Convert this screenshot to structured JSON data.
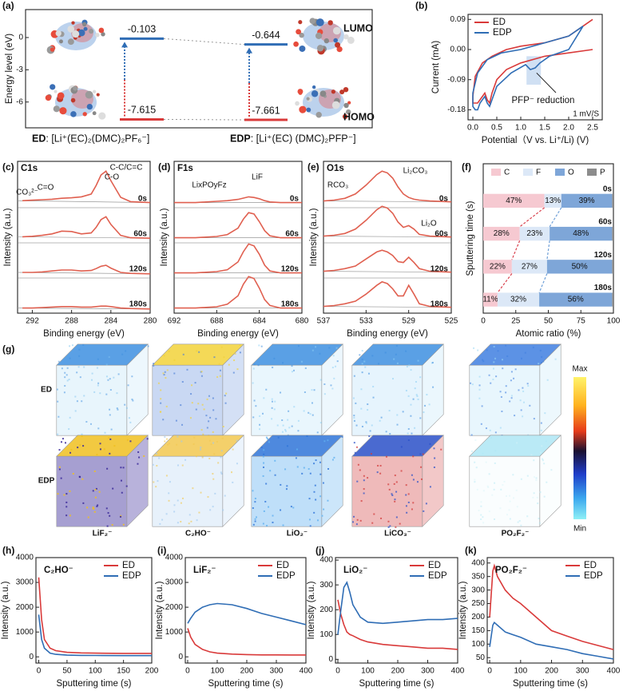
{
  "chart_data": [
    {
      "type": "energy_level",
      "panel_label": "(a)",
      "ylabel": "Energy level (eV)",
      "ylim": [
        -8.4,
        2.6
      ],
      "yticks": [
        0,
        -3,
        -6
      ],
      "level_labels": [
        "LUMO",
        "HOMO"
      ],
      "level_colors": [
        "#2f6db5",
        "#d93a3a"
      ],
      "series": [
        {
          "name": "ED",
          "color": "#d93a3a",
          "values": [
            -0.103,
            -7.615
          ],
          "formula": ": [Li⁺(EC)₂(DMC)₂PF₆⁻]"
        },
        {
          "name": "EDP",
          "color": "#2f6db5",
          "values": [
            -0.644,
            -7.661
          ],
          "formula": ": [Li⁺(EC) (DMC)₂PFP⁻]"
        }
      ]
    },
    {
      "type": "line",
      "panel_label": "(b)",
      "xlabel": "Potential（V vs. Li⁺/Li) (V)",
      "ylabel": "Current (mA)",
      "xlim": [
        -0.1,
        2.7
      ],
      "xticks": [
        {
          "value": 0,
          "label": "0.0"
        },
        {
          "value": 0.5,
          "label": "0.5"
        },
        {
          "value": 1,
          "label": "1.0"
        },
        {
          "value": 1.5,
          "label": "1.5"
        },
        {
          "value": 2,
          "label": "2.0"
        },
        {
          "value": 2.5,
          "label": "2.5"
        }
      ],
      "ylim": [
        -0.21,
        0.105
      ],
      "yticks": [
        0.09,
        {
          "value": 0,
          "label": "0.00"
        },
        -0.09,
        -0.18
      ],
      "legend": "upper left",
      "annotations": [
        "PFP⁻ reduction",
        "1 mV/S"
      ],
      "series": [
        {
          "name": "ED",
          "color": "#d93a3a",
          "x": [
            2.5,
            2.0,
            1.5,
            1.0,
            0.7,
            0.5,
            0.4,
            0.35,
            0.3,
            0.25,
            0.15,
            0.1,
            0.05,
            0,
            0,
            0.05,
            0.2,
            0.4,
            0.7,
            1.0,
            1.5,
            2.0,
            2.3,
            2.5
          ],
          "values": [
            0.0,
            -0.01,
            -0.02,
            -0.04,
            -0.06,
            -0.09,
            -0.13,
            -0.16,
            -0.15,
            -0.13,
            -0.15,
            -0.16,
            -0.16,
            -0.16,
            -0.14,
            -0.08,
            -0.04,
            -0.02,
            0.0,
            0.01,
            0.02,
            0.04,
            0.07,
            0.09
          ]
        },
        {
          "name": "EDP",
          "color": "#2f6db5",
          "x": [
            2.3,
            2.0,
            1.6,
            1.4,
            1.3,
            1.2,
            1.1,
            0.8,
            0.5,
            0.4,
            0.35,
            0.3,
            0.25,
            0.15,
            0.1,
            0.05,
            0,
            0,
            0.1,
            0.3,
            0.6,
            1.0,
            1.5,
            2.0,
            2.3
          ],
          "values": [
            0.07,
            0.0,
            -0.02,
            -0.04,
            -0.055,
            -0.06,
            -0.045,
            -0.07,
            -0.11,
            -0.15,
            -0.17,
            -0.16,
            -0.14,
            -0.16,
            -0.18,
            -0.18,
            -0.17,
            -0.13,
            -0.07,
            -0.03,
            -0.01,
            0.0,
            0.02,
            0.04,
            0.07
          ]
        }
      ]
    },
    {
      "type": "xps",
      "panel_label": "(c)",
      "title": "C1s",
      "xlabel": "Binding energy (eV)",
      "ylabel": "Intensity (a.u.)",
      "xlim": [
        293.5,
        280
      ],
      "xticks": [
        292,
        288,
        284,
        280
      ],
      "peak_labels": [
        "CO₃²⁻",
        "C=O",
        "C-O",
        "C-C/C=C"
      ],
      "peak_label_colors": [
        "#3a9a5b",
        "#55688a",
        "#e09a30",
        "#2f6db5"
      ],
      "x": [
        293,
        292,
        291,
        290,
        289,
        288,
        287,
        286,
        285.5,
        285,
        284.5,
        284,
        283,
        282,
        280
      ],
      "series": [
        {
          "name": "0s",
          "color": "#e06050",
          "values": [
            8,
            9,
            10,
            11,
            13,
            14,
            16,
            22,
            40,
            62,
            70,
            50,
            15,
            6,
            4
          ]
        },
        {
          "name": "60s",
          "color": "#e06050",
          "values": [
            6,
            7,
            9,
            12,
            18,
            17,
            12,
            14,
            26,
            42,
            48,
            32,
            9,
            4,
            3
          ]
        },
        {
          "name": "120s",
          "color": "#e06050",
          "values": [
            5,
            5,
            6,
            8,
            10,
            10,
            8,
            9,
            13,
            18,
            20,
            14,
            5,
            3,
            2
          ]
        },
        {
          "name": "180s",
          "color": "#e06050",
          "values": [
            4,
            4,
            5,
            6,
            7,
            7,
            6,
            6,
            7,
            8,
            8,
            7,
            4,
            3,
            2
          ]
        }
      ]
    },
    {
      "type": "xps",
      "panel_label": "(d)",
      "title": "F1s",
      "xlabel": "Binding energy (eV)",
      "ylabel": "Intensity (a.u.)",
      "xlim": [
        692,
        680
      ],
      "xticks": [
        692,
        688,
        684,
        680
      ],
      "peak_labels": [
        "LixPOyFz",
        "LiF"
      ],
      "peak_label_colors": [
        "#3a9a5b",
        "#2f6db5"
      ],
      "x": [
        692,
        690,
        689,
        688,
        687,
        686,
        685.5,
        685,
        684.5,
        684,
        683.5,
        683,
        682,
        681,
        680
      ],
      "series": [
        {
          "name": "0s",
          "color": "#e06050",
          "values": [
            3,
            3,
            4,
            5,
            6,
            8,
            10,
            12,
            11,
            9,
            6,
            4,
            3,
            3,
            3
          ]
        },
        {
          "name": "60s",
          "color": "#e06050",
          "values": [
            3,
            3,
            4,
            5,
            8,
            18,
            32,
            42,
            40,
            28,
            14,
            6,
            3,
            3,
            3
          ]
        },
        {
          "name": "120s",
          "color": "#e06050",
          "values": [
            3,
            3,
            4,
            5,
            8,
            20,
            36,
            48,
            45,
            32,
            15,
            6,
            3,
            3,
            3
          ]
        },
        {
          "name": "180s",
          "color": "#e06050",
          "values": [
            3,
            3,
            4,
            5,
            9,
            22,
            40,
            52,
            49,
            34,
            16,
            7,
            3,
            3,
            3
          ]
        }
      ]
    },
    {
      "type": "xps",
      "panel_label": "(e)",
      "title": "O1s",
      "xlabel": "Binding energy (eV)",
      "ylabel": "Intensity (a.u.)",
      "xlim": [
        537,
        525
      ],
      "xticks": [
        537,
        533,
        529,
        525
      ],
      "peak_labels": [
        "RCO₃",
        "Li₂CO₃",
        "Li₂O"
      ],
      "peak_label_colors": [
        "#55688a",
        "#e09a30",
        "#3a9a5b"
      ],
      "x": [
        537,
        536,
        535,
        534,
        533,
        532,
        531.5,
        531,
        530.5,
        530,
        529.5,
        529,
        528.5,
        528,
        527,
        525
      ],
      "series": [
        {
          "name": "0s",
          "color": "#e06050",
          "values": [
            4,
            5,
            7,
            12,
            22,
            34,
            38,
            36,
            30,
            20,
            12,
            8,
            6,
            5,
            4,
            3
          ]
        },
        {
          "name": "60s",
          "color": "#e06050",
          "values": [
            4,
            5,
            7,
            12,
            22,
            34,
            38,
            36,
            30,
            20,
            14,
            16,
            12,
            6,
            4,
            3
          ]
        },
        {
          "name": "120s",
          "color": "#e06050",
          "values": [
            4,
            5,
            7,
            10,
            18,
            26,
            28,
            26,
            22,
            15,
            14,
            20,
            14,
            7,
            4,
            3
          ]
        },
        {
          "name": "180s",
          "color": "#e06050",
          "values": [
            4,
            5,
            7,
            10,
            18,
            28,
            32,
            30,
            24,
            16,
            16,
            28,
            18,
            7,
            4,
            3
          ]
        }
      ]
    },
    {
      "type": "stacked_barh",
      "panel_label": "(f)",
      "xlabel": "Atomic ratio (%)",
      "ylabel": "Sputtering time (s)",
      "xlim": [
        0,
        100
      ],
      "xticks": [
        0,
        25,
        50,
        75,
        100
      ],
      "categories": [
        "0s",
        "60s",
        "120s",
        "180s"
      ],
      "legend": "top",
      "series": [
        {
          "name": "C",
          "color": "#f6c9d1",
          "label_color": "#d9434f",
          "values": [
            47,
            28,
            22,
            11
          ],
          "value_labels": [
            "47%",
            "28%",
            "22%",
            "11%"
          ]
        },
        {
          "name": "F",
          "color": "#dce8f7",
          "label_color": "#6fa0d8",
          "values": [
            13,
            23,
            27,
            32
          ],
          "value_labels": [
            "13%",
            "23%",
            "27%",
            "32%"
          ]
        },
        {
          "name": "O",
          "color": "#7ea6d8",
          "label_color": "#1d4f91",
          "values": [
            39,
            48,
            50,
            56
          ],
          "value_labels": [
            "39%",
            "48%",
            "50%",
            "56%"
          ]
        },
        {
          "name": "P",
          "color": "#8c8c8c",
          "values": [
            1,
            1,
            1,
            1
          ]
        }
      ]
    },
    {
      "type": "image_grid",
      "panel_label": "(g)",
      "rows": [
        "ED",
        "EDP"
      ],
      "row_colors": [
        "#d93a3a",
        "#2f6db5"
      ],
      "columns": [
        "LiF₂⁻",
        "C₂HO⁻",
        "LiO₂⁻",
        "LiCO₃⁻",
        "PO₂F₂⁻"
      ],
      "colorbar_labels": [
        "Max",
        "Min"
      ]
    },
    {
      "type": "line",
      "panel_label": "(h)",
      "title": "C₂HO⁻",
      "xlabel": "Sputtering time (s)",
      "ylabel": "Intensity (a.u.)",
      "xlim": [
        -5,
        200
      ],
      "xticks": [
        0,
        50,
        100,
        150,
        200
      ],
      "ylim": [
        -250,
        4000
      ],
      "yticks": [
        0,
        1000,
        2000,
        3000,
        4000
      ],
      "legend": "upper right",
      "x": [
        0,
        5,
        10,
        20,
        30,
        50,
        75,
        100,
        150,
        200
      ],
      "series": [
        {
          "name": "ED",
          "color": "#d93a3a",
          "values": [
            3200,
            1500,
            700,
            350,
            250,
            180,
            160,
            150,
            140,
            140
          ]
        },
        {
          "name": "EDP",
          "color": "#2f6db5",
          "values": [
            1700,
            700,
            350,
            150,
            100,
            70,
            60,
            55,
            50,
            50
          ]
        }
      ]
    },
    {
      "type": "line",
      "panel_label": "(i)",
      "title": "LiF₂⁻",
      "xlabel": "Sputtering time (s)",
      "ylabel": "Intensity (a.u.)",
      "xlim": [
        -8,
        400
      ],
      "xticks": [
        0,
        100,
        200,
        300,
        400
      ],
      "ylim": [
        -250,
        4000
      ],
      "yticks": [
        0,
        1000,
        2000,
        3000,
        4000
      ],
      "legend": "upper right",
      "x": [
        0,
        10,
        25,
        50,
        75,
        100,
        150,
        200,
        250,
        300,
        350,
        400
      ],
      "series": [
        {
          "name": "ED",
          "color": "#d93a3a",
          "values": [
            1150,
            800,
            500,
            300,
            200,
            150,
            110,
            90,
            80,
            80,
            75,
            75
          ]
        },
        {
          "name": "EDP",
          "color": "#2f6db5",
          "values": [
            1350,
            1550,
            1800,
            2000,
            2100,
            2150,
            2100,
            1950,
            1750,
            1600,
            1450,
            1300
          ]
        }
      ]
    },
    {
      "type": "line",
      "panel_label": "(j)",
      "title": "LiO₂⁻",
      "xlabel": "Sputtering time (s)",
      "ylabel": "Intensity (a.u.)",
      "xlim": [
        -8,
        400
      ],
      "xticks": [
        0,
        100,
        200,
        300,
        400
      ],
      "ylim": [
        -15,
        410
      ],
      "yticks": [
        0,
        100,
        200,
        300,
        400
      ],
      "legend": "upper right",
      "x": [
        0,
        10,
        20,
        30,
        40,
        50,
        75,
        100,
        150,
        200,
        250,
        300,
        350,
        400
      ],
      "series": [
        {
          "name": "ED",
          "color": "#d93a3a",
          "values": [
            240,
            180,
            140,
            110,
            100,
            95,
            80,
            70,
            60,
            55,
            50,
            45,
            45,
            40
          ]
        },
        {
          "name": "EDP",
          "color": "#2f6db5",
          "values": [
            100,
            200,
            290,
            310,
            270,
            220,
            170,
            150,
            145,
            150,
            155,
            160,
            160,
            165
          ]
        }
      ]
    },
    {
      "type": "line",
      "panel_label": "(k)",
      "title": "PO₂F₂⁻",
      "xlabel": "Sputtering time (s)",
      "ylabel": "Intensity (a.u.)",
      "xlim": [
        -8,
        400
      ],
      "xticks": [
        0,
        100,
        200,
        300,
        400
      ],
      "ylim": [
        30,
        420
      ],
      "yticks": [
        50,
        100,
        150,
        200,
        250,
        300,
        350,
        400
      ],
      "legend": "upper right",
      "x": [
        0,
        10,
        15,
        25,
        50,
        75,
        100,
        150,
        200,
        250,
        300,
        350,
        400
      ],
      "series": [
        {
          "name": "ED",
          "color": "#d93a3a",
          "values": [
            200,
            370,
            390,
            350,
            300,
            270,
            250,
            200,
            150,
            130,
            110,
            95,
            80
          ]
        },
        {
          "name": "EDP",
          "color": "#2f6db5",
          "values": [
            90,
            170,
            180,
            170,
            145,
            135,
            125,
            100,
            90,
            80,
            65,
            55,
            45
          ]
        }
      ]
    }
  ]
}
